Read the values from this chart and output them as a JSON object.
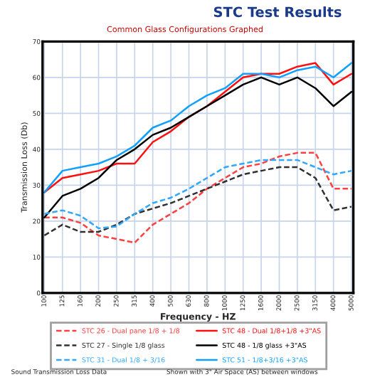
{
  "chart_data": {
    "type": "line",
    "title": "STC Test Results",
    "subtitle": "Common Glass Configurations Graphed",
    "xlabel": "Frequency - HZ",
    "ylabel": "Transmission Loss (Db)",
    "categories": [
      "100",
      "125",
      "160",
      "200",
      "250",
      "315",
      "400",
      "500",
      "630",
      "800",
      "1000",
      "1250",
      "1600",
      "2000",
      "2500",
      "3150",
      "4000",
      "5000"
    ],
    "ylim": [
      0,
      70
    ],
    "yticks": [
      0,
      10,
      20,
      30,
      40,
      50,
      60,
      70
    ],
    "grid": true,
    "legend": "bottom",
    "series": [
      {
        "name": "STC 26 - Dual pane 1/8 + 1/8",
        "color": "#ff4040",
        "line_style": "dashed",
        "values": [
          21,
          21,
          19.5,
          16,
          15,
          14,
          19,
          22,
          25,
          29,
          32,
          35,
          36,
          38,
          39,
          39,
          29,
          29
        ]
      },
      {
        "name": "STC 48 - Dual 1/8+1/8 +3\"AS",
        "color": "#ff1010",
        "line_style": "solid",
        "values": [
          28,
          32,
          33,
          34,
          36,
          36,
          42,
          45,
          49,
          52,
          56,
          60,
          61,
          61,
          63,
          64,
          58,
          61
        ]
      },
      {
        "name": "STC 27 - Single 1/8 glass",
        "color": "#303030",
        "line_style": "dashed",
        "values": [
          16,
          19,
          17,
          17,
          19,
          22,
          23.5,
          25,
          27,
          29,
          31,
          33,
          34,
          35,
          35,
          32,
          23,
          24
        ]
      },
      {
        "name": "STC 48 - 1/8 glass +3\"AS",
        "color": "#000000",
        "line_style": "solid",
        "values": [
          21,
          27,
          29,
          32,
          37,
          40,
          44,
          46,
          49,
          52,
          55,
          58,
          60,
          58,
          60,
          57,
          52,
          56
        ]
      },
      {
        "name": "STC 31 - Dual 1/8 + 3/16",
        "color": "#30a8ff",
        "line_style": "dashed",
        "values": [
          22,
          23,
          21.5,
          18,
          18.5,
          22,
          25,
          26.5,
          29,
          32,
          35,
          36,
          37,
          37,
          37,
          35,
          33,
          34
        ]
      },
      {
        "name": "STC 51 - 1/8+3/16 +3\"AS",
        "color": "#10a0ff",
        "line_style": "solid",
        "values": [
          28,
          34,
          35,
          36,
          38,
          41,
          46,
          48,
          52,
          55,
          57,
          61,
          61,
          60,
          62,
          63,
          60,
          64
        ]
      }
    ],
    "annotations": [
      "Sound Transmission Loss Data",
      "Shown with 3\" Air Space (AS) between windows"
    ]
  }
}
